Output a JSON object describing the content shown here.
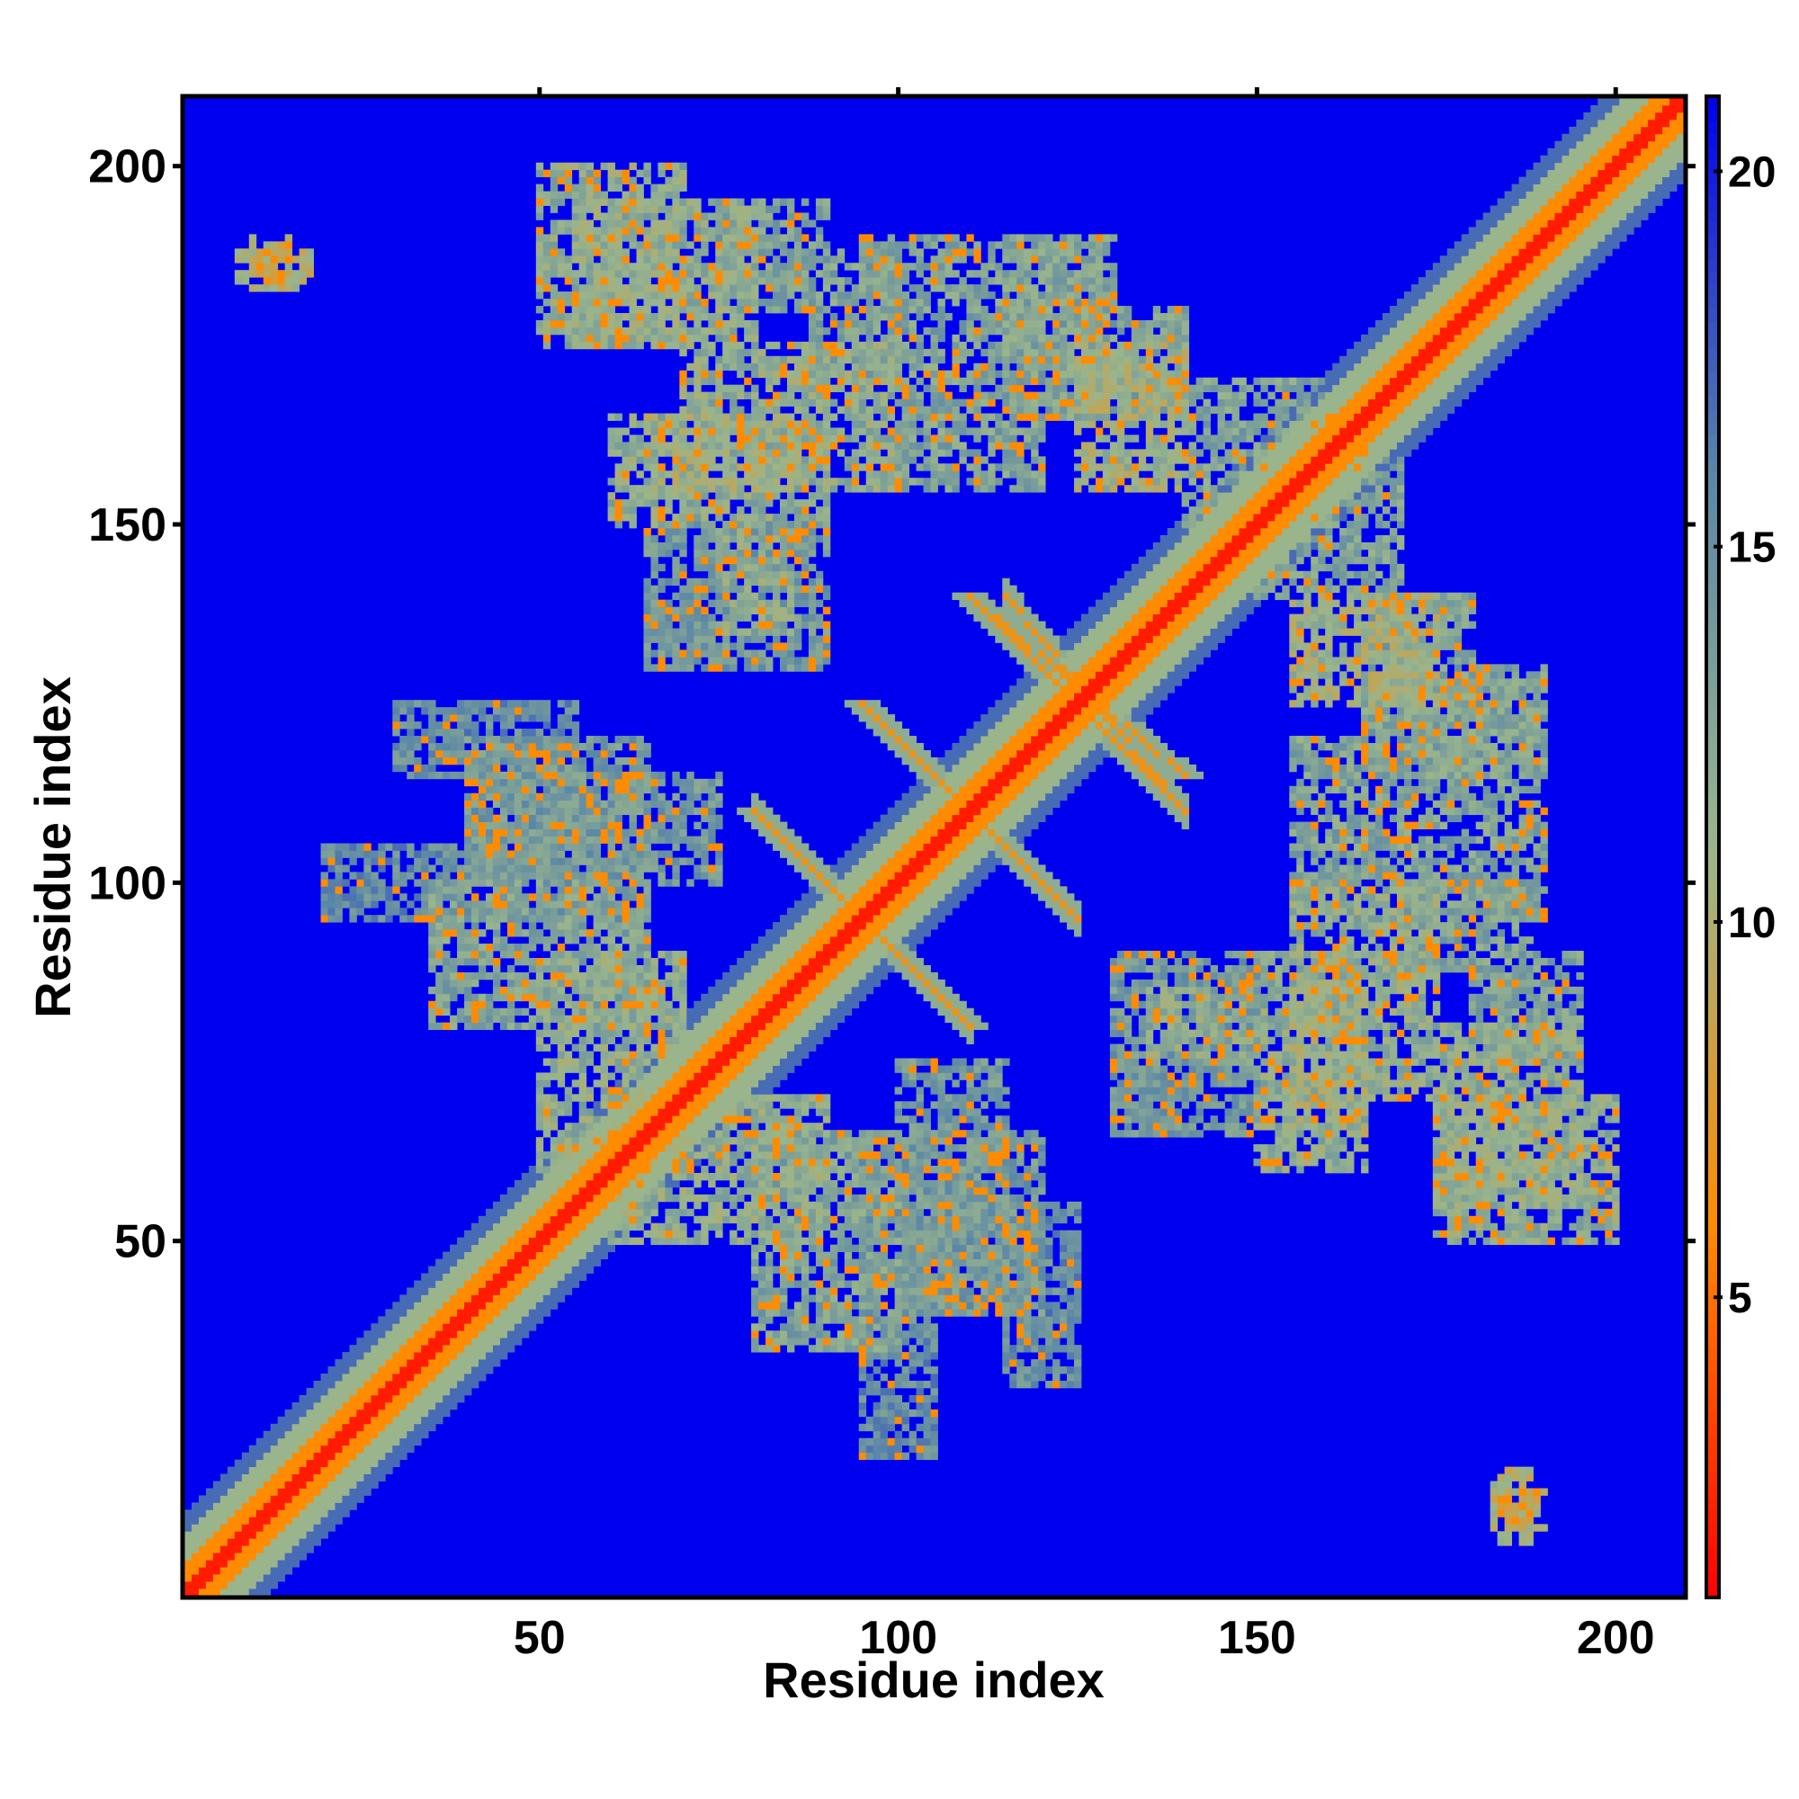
{
  "chart_data": {
    "type": "heatmap",
    "title": "",
    "xlabel": "Residue index",
    "ylabel": "Residue index",
    "xlim": [
      1,
      209
    ],
    "ylim": [
      1,
      209
    ],
    "x_ticks": [
      50,
      100,
      150,
      200
    ],
    "y_ticks": [
      50,
      100,
      150,
      200
    ],
    "colorbar": {
      "range": [
        1,
        21
      ],
      "ticks": [
        5,
        10,
        15,
        20
      ],
      "colors": [
        "#ff0000",
        "#ff8c00",
        "#9ab58c",
        "#5a86a8",
        "#0000f0"
      ]
    },
    "background_value": 21,
    "diagonal_band": {
      "core_value": 2,
      "inner_value": 6,
      "outer_value": 11
    },
    "contact_regions": [
      {
        "x": [
          50,
          70
        ],
        "y": [
          175,
          200
        ],
        "value": 11
      },
      {
        "x": [
          75,
          90
        ],
        "y": [
          180,
          195
        ],
        "value": 12
      },
      {
        "x": [
          88,
          100
        ],
        "y": [
          170,
          188
        ],
        "value": 12
      },
      {
        "x": [
          60,
          90
        ],
        "y": [
          150,
          165
        ],
        "value": 11
      },
      {
        "x": [
          100,
          120
        ],
        "y": [
          155,
          165
        ],
        "value": 12
      },
      {
        "x": [
          115,
          130
        ],
        "y": [
          165,
          185
        ],
        "value": 12
      },
      {
        "x": [
          125,
          140
        ],
        "y": [
          155,
          175
        ],
        "value": 10
      },
      {
        "x": [
          140,
          160
        ],
        "y": [
          150,
          170
        ],
        "value": 12
      },
      {
        "x": [
          75,
          85
        ],
        "y": [
          135,
          155
        ],
        "value": 11
      },
      {
        "x": [
          10,
          15
        ],
        "y": [
          185,
          190
        ],
        "value": 9
      },
      {
        "x": [
          165,
          180
        ],
        "y": [
          100,
          140
        ],
        "value": 12
      },
      {
        "x": [
          180,
          190
        ],
        "y": [
          95,
          130
        ],
        "value": 12
      },
      {
        "x": [
          155,
          175
        ],
        "y": [
          70,
          100
        ],
        "value": 11
      },
      {
        "x": [
          175,
          195
        ],
        "y": [
          55,
          80
        ],
        "value": 11
      },
      {
        "x": [
          155,
          165
        ],
        "y": [
          65,
          80
        ],
        "value": 10
      },
      {
        "x": [
          183,
          188
        ],
        "y": [
          8,
          18
        ],
        "value": 9
      },
      {
        "x": [
          40,
          65
        ],
        "y": [
          95,
          120
        ],
        "value": 13
      },
      {
        "x": [
          20,
          40
        ],
        "y": [
          95,
          105
        ],
        "value": 14
      },
      {
        "x": [
          50,
          70
        ],
        "y": [
          60,
          90
        ],
        "value": 11
      },
      {
        "x": [
          80,
          100
        ],
        "y": [
          35,
          65
        ],
        "value": 12
      },
      {
        "x": [
          100,
          115
        ],
        "y": [
          40,
          75
        ],
        "value": 13
      },
      {
        "x": [
          115,
          125
        ],
        "y": [
          30,
          55
        ],
        "value": 14
      },
      {
        "x": [
          130,
          150
        ],
        "y": [
          65,
          90
        ],
        "value": 13
      }
    ],
    "strands": [
      {
        "x": [
          115,
          140
        ],
        "y": [
          140,
          110
        ],
        "value": 7
      },
      {
        "x": [
          100,
          120
        ],
        "y": [
          120,
          100
        ],
        "value": 7
      },
      {
        "x": [
          80,
          100
        ],
        "y": [
          110,
          90
        ],
        "value": 7
      },
      {
        "x": [
          95,
          110
        ],
        "y": [
          95,
          80
        ],
        "value": 7
      },
      {
        "x": [
          110,
          125
        ],
        "y": [
          110,
          95
        ],
        "value": 7
      },
      {
        "x": [
          125,
          140
        ],
        "y": [
          125,
          110
        ],
        "value": 7
      }
    ]
  }
}
